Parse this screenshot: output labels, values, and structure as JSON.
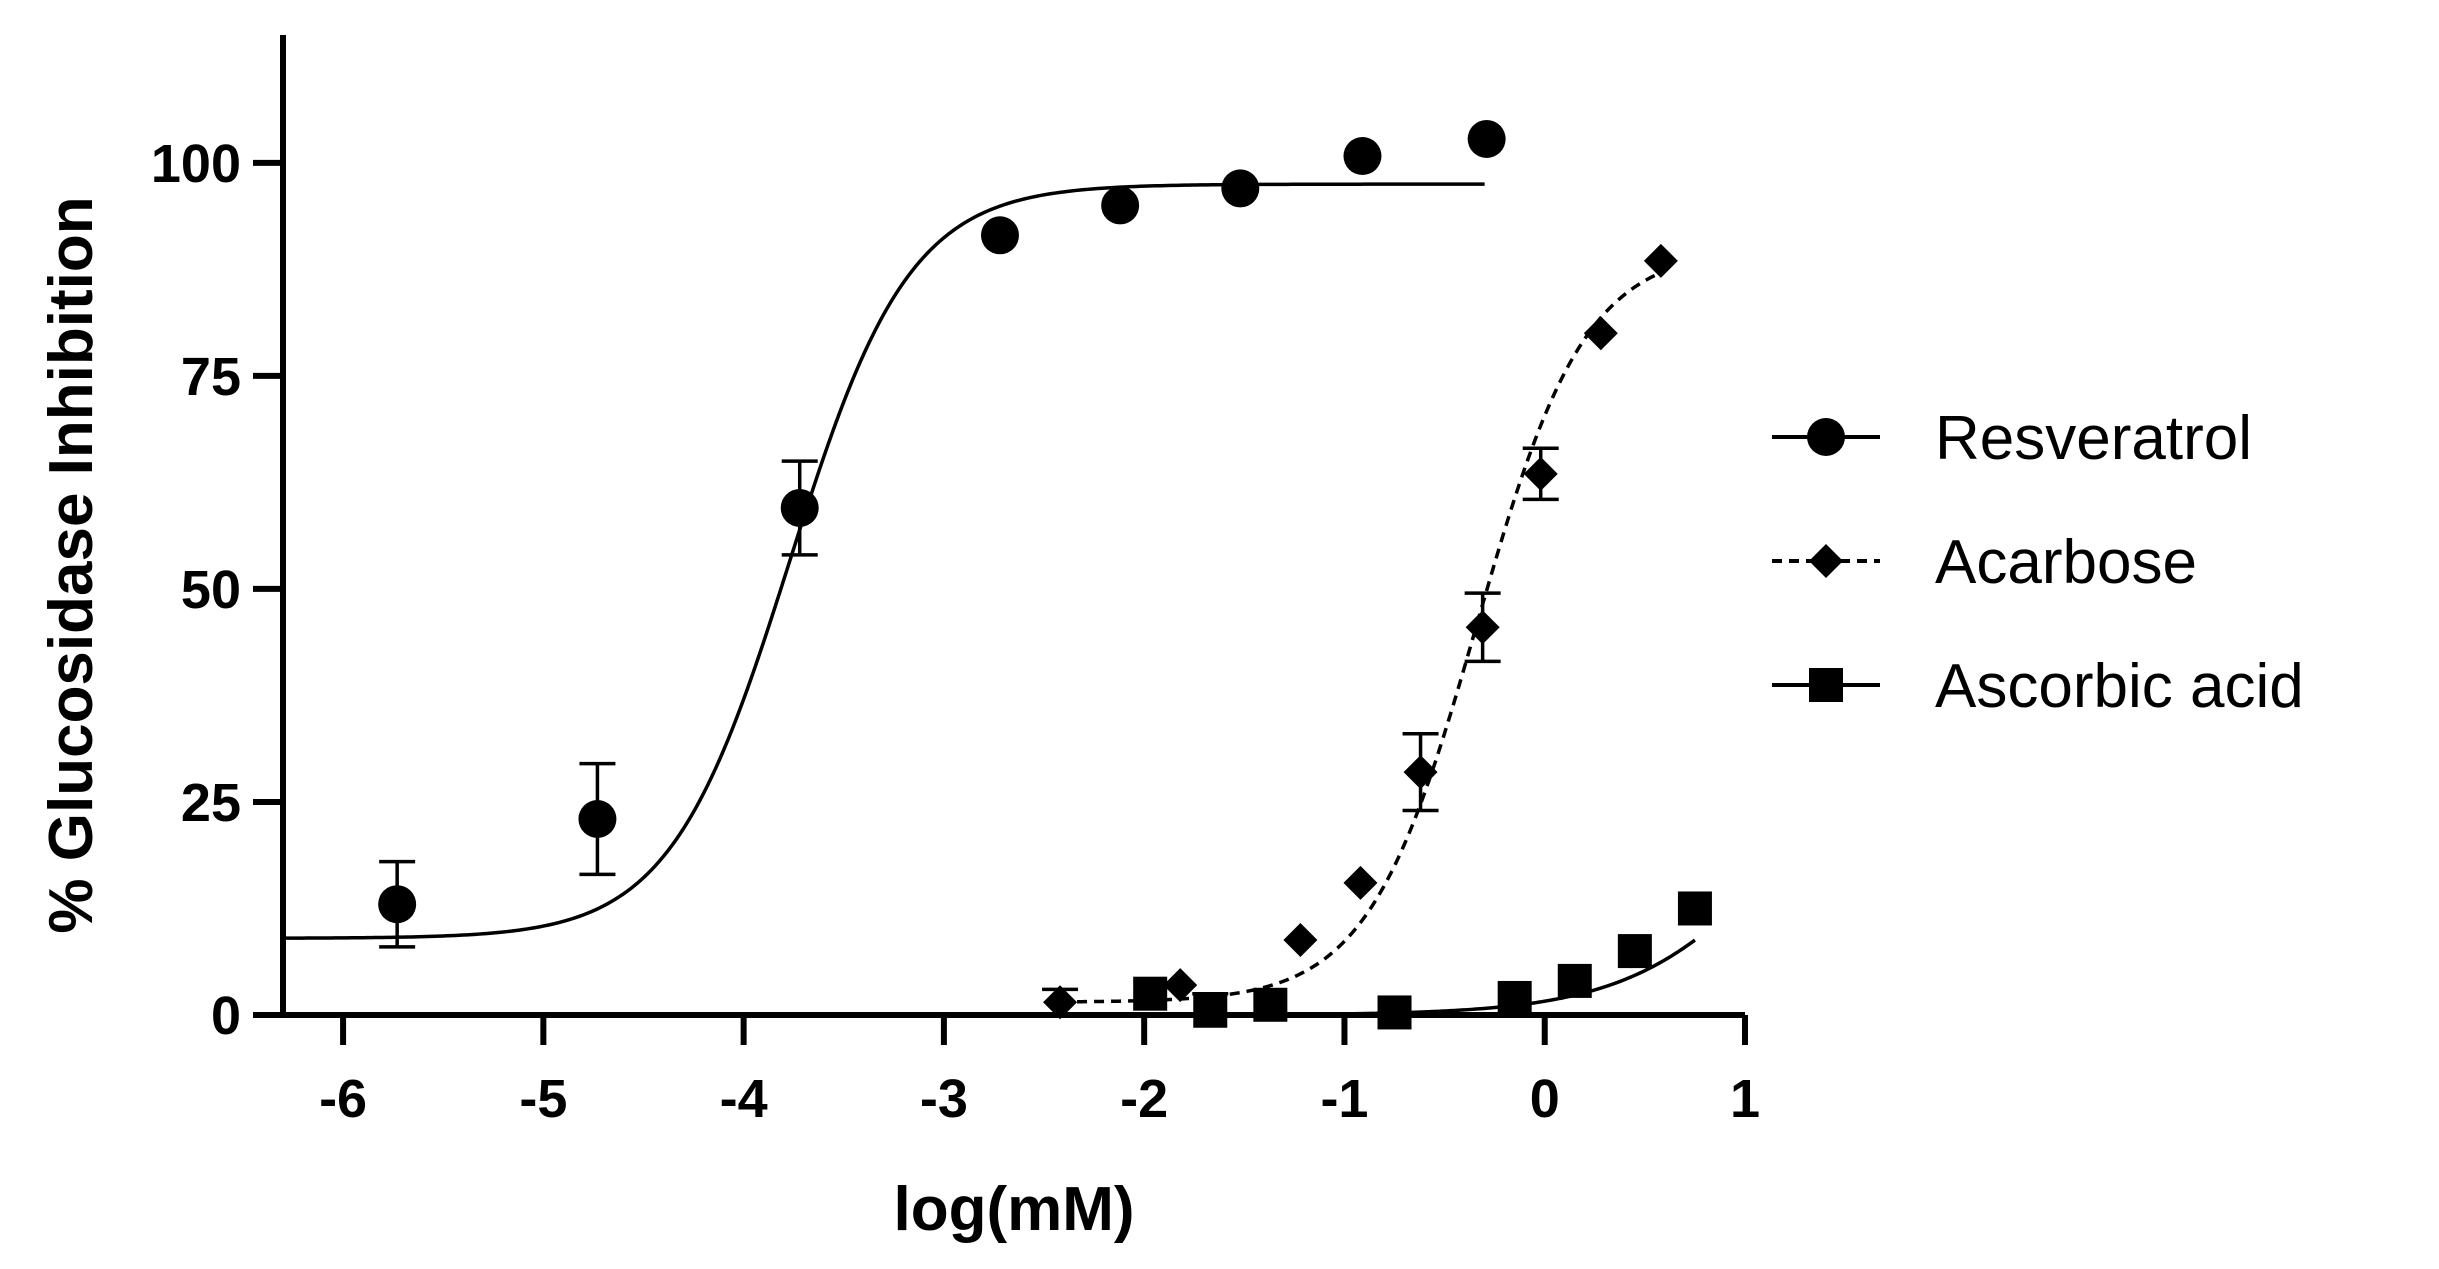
{
  "chart_data": {
    "type": "scatter",
    "title": "",
    "xlabel": "log(mM)",
    "ylabel": "% Glucosidase Inhibition",
    "xlim": [
      -6.3,
      1
    ],
    "ylim": [
      0,
      115
    ],
    "x_ticks": [
      -6,
      -5,
      -4,
      -3,
      -2,
      -1,
      0,
      1
    ],
    "y_ticks": [
      0,
      25,
      50,
      75,
      100
    ],
    "grid": false,
    "legend_position": "right",
    "series": [
      {
        "name": "Resveratrol",
        "marker": "circle",
        "line_style": "solid",
        "points": [
          {
            "x": -5.73,
            "y": 13.0,
            "err": 5.0
          },
          {
            "x": -4.73,
            "y": 23.0,
            "err": 6.5
          },
          {
            "x": -3.72,
            "y": 59.5,
            "err": 5.5
          },
          {
            "x": -2.72,
            "y": 91.5,
            "err": 0
          },
          {
            "x": -2.12,
            "y": 95.0,
            "err": 0
          },
          {
            "x": -1.52,
            "y": 97.0,
            "err": 0
          },
          {
            "x": -0.91,
            "y": 100.8,
            "err": 0
          },
          {
            "x": -0.29,
            "y": 102.8,
            "err": 0
          }
        ],
        "fit": {
          "model": "sigmoid",
          "bottom": 9.0,
          "top": 97.5,
          "logEC50": -3.77,
          "hill": 1.45,
          "x_range": [
            -6.3,
            -0.3
          ]
        }
      },
      {
        "name": "Acarbose",
        "marker": "diamond",
        "line_style": "dashed",
        "points": [
          {
            "x": -2.42,
            "y": 1.5,
            "err": 1.5
          },
          {
            "x": -1.82,
            "y": 3.5,
            "err": 0
          },
          {
            "x": -1.22,
            "y": 8.8,
            "err": 0
          },
          {
            "x": -0.92,
            "y": 15.5,
            "err": 0
          },
          {
            "x": -0.62,
            "y": 28.5,
            "err": 4.5
          },
          {
            "x": -0.31,
            "y": 45.5,
            "err": 4.0
          },
          {
            "x": -0.02,
            "y": 63.5,
            "err": 3.0
          },
          {
            "x": 0.28,
            "y": 80.0,
            "err": 0
          },
          {
            "x": 0.58,
            "y": 88.5,
            "err": 0
          }
        ],
        "fit": {
          "model": "sigmoid",
          "bottom": 1.5,
          "top": 90.0,
          "logEC50": -0.34,
          "hill": 1.6,
          "x_range": [
            -2.42,
            0.58
          ]
        }
      },
      {
        "name": "Ascorbic acid",
        "marker": "square",
        "line_style": "solid",
        "points": [
          {
            "x": -1.97,
            "y": 2.5,
            "err": 0
          },
          {
            "x": -1.67,
            "y": 0.5,
            "err": 2.0
          },
          {
            "x": -1.37,
            "y": 1.2,
            "err": 0
          },
          {
            "x": -0.75,
            "y": 0.3,
            "err": 0
          },
          {
            "x": -0.15,
            "y": 2.0,
            "err": 0
          },
          {
            "x": 0.15,
            "y": 4.0,
            "err": 0
          },
          {
            "x": 0.45,
            "y": 7.5,
            "err": 0
          },
          {
            "x": 0.75,
            "y": 12.5,
            "err": 0
          }
        ],
        "fit": {
          "model": "sigmoid",
          "bottom": 0.0,
          "top": 40.0,
          "logEC50": 1.25,
          "hill": 1.1,
          "x_range": [
            -2.0,
            0.75
          ]
        }
      }
    ]
  }
}
